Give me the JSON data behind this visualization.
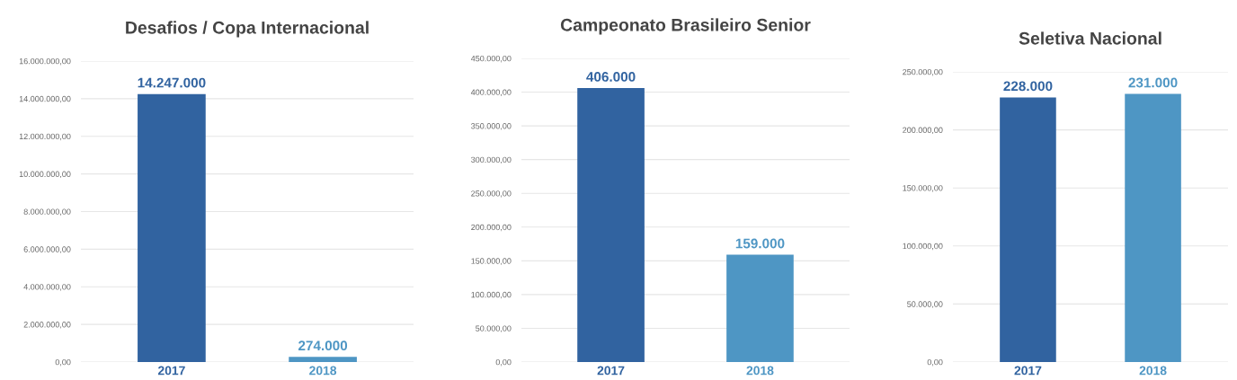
{
  "chart_data": [
    {
      "type": "bar",
      "title": "Desafios / Copa Internacional",
      "categories": [
        "2017",
        "2018"
      ],
      "values": [
        14247000,
        274000
      ],
      "colors": [
        "#3163a0",
        "#4e96c4"
      ],
      "value_labels": [
        "14.247.000",
        "274.000"
      ],
      "ylim": [
        0,
        16000000
      ],
      "yticks": [
        {
          "value": 0,
          "label": "0,00"
        },
        {
          "value": 2000000,
          "label": "2.000.000,00"
        },
        {
          "value": 4000000,
          "label": "4.000.000,00"
        },
        {
          "value": 6000000,
          "label": "6.000.000,00"
        },
        {
          "value": 8000000,
          "label": "8.000.000,00"
        },
        {
          "value": 10000000,
          "label": "10.000.000,00"
        },
        {
          "value": 12000000,
          "label": "12.000.000,00"
        },
        {
          "value": 14000000,
          "label": "14.000.000,00"
        },
        {
          "value": 16000000,
          "label": "16.000.000,00"
        }
      ],
      "grid": "y"
    },
    {
      "type": "bar",
      "title": "Campeonato Brasileiro Senior",
      "categories": [
        "2017",
        "2018"
      ],
      "values": [
        406000,
        159000
      ],
      "colors": [
        "#3163a0",
        "#4e96c4"
      ],
      "value_labels": [
        "406.000",
        "159.000"
      ],
      "ylim": [
        0,
        450000
      ],
      "yticks": [
        {
          "value": 0,
          "label": "0,00"
        },
        {
          "value": 50000,
          "label": "50.000,00"
        },
        {
          "value": 100000,
          "label": "100.000,00"
        },
        {
          "value": 150000,
          "label": "150.000,00"
        },
        {
          "value": 200000,
          "label": "200.000,00"
        },
        {
          "value": 250000,
          "label": "250.000,00"
        },
        {
          "value": 300000,
          "label": "300.000,00"
        },
        {
          "value": 350000,
          "label": "350.000,00"
        },
        {
          "value": 400000,
          "label": "400.000,00"
        },
        {
          "value": 450000,
          "label": "450.000,00"
        }
      ],
      "grid": "y"
    },
    {
      "type": "bar",
      "title": "Seletiva Nacional",
      "categories": [
        "2017",
        "2018"
      ],
      "values": [
        228000,
        231000
      ],
      "colors": [
        "#3163a0",
        "#4e96c4"
      ],
      "value_labels": [
        "228.000",
        "231.000"
      ],
      "ylim": [
        0,
        250000
      ],
      "yticks": [
        {
          "value": 0,
          "label": "0,00"
        },
        {
          "value": 50000,
          "label": "50.000,00"
        },
        {
          "value": 100000,
          "label": "100.000,00"
        },
        {
          "value": 150000,
          "label": "150.000,00"
        },
        {
          "value": 200000,
          "label": "200.000,00"
        },
        {
          "value": 250000,
          "label": "250.000,00"
        }
      ],
      "grid": "y"
    }
  ]
}
